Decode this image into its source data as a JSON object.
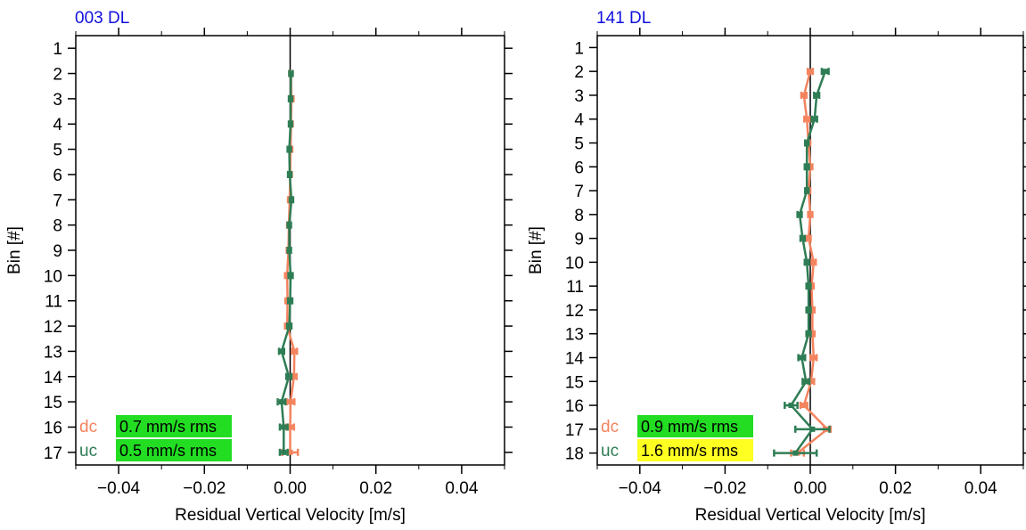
{
  "chart_data": [
    {
      "type": "line",
      "title": "003 DL",
      "xlabel": "Residual Vertical Velocity [m/s]",
      "ylabel": "Bin [#]",
      "xlim": [
        -0.05,
        0.05
      ],
      "ylim": [
        0.5,
        17.5
      ],
      "y_inverted": true,
      "xticks": [
        "−0.04",
        "−0.02",
        "0.00",
        "0.02",
        "0.04"
      ],
      "xtick_values": [
        -0.04,
        -0.02,
        0.0,
        0.02,
        0.04
      ],
      "yticks": [
        "1",
        "2",
        "3",
        "4",
        "5",
        "6",
        "7",
        "8",
        "9",
        "10",
        "11",
        "12",
        "13",
        "14",
        "15",
        "16",
        "17"
      ],
      "grid": false,
      "legend_location": "bottom-left",
      "series": [
        {
          "name": "dc",
          "color": "#f4845f",
          "rms_label": "0.7 mm/s rms",
          "rms_badge_color": "#22dd22",
          "points": [
            {
              "bin": 2,
              "x": 0.0002,
              "err": 0.0004
            },
            {
              "bin": 3,
              "x": 0.0003,
              "err": 0.0005
            },
            {
              "bin": 4,
              "x": 0.0002,
              "err": 0.0004
            },
            {
              "bin": 5,
              "x": 0.0001,
              "err": 0.0004
            },
            {
              "bin": 6,
              "x": 0.0,
              "err": 0.0004
            },
            {
              "bin": 7,
              "x": -0.0001,
              "err": 0.0004
            },
            {
              "bin": 8,
              "x": -0.0003,
              "err": 0.0004
            },
            {
              "bin": 9,
              "x": -0.0004,
              "err": 0.0004
            },
            {
              "bin": 10,
              "x": -0.0007,
              "err": 0.0005
            },
            {
              "bin": 11,
              "x": -0.0006,
              "err": 0.0005
            },
            {
              "bin": 12,
              "x": -0.0007,
              "err": 0.0005
            },
            {
              "bin": 13,
              "x": 0.001,
              "err": 0.0006
            },
            {
              "bin": 14,
              "x": 0.0009,
              "err": 0.0006
            },
            {
              "bin": 15,
              "x": 0.0001,
              "err": 0.0009
            },
            {
              "bin": 16,
              "x": 0.0,
              "err": 0.0009
            },
            {
              "bin": 17,
              "x": 0.0,
              "err": 0.0018
            }
          ]
        },
        {
          "name": "uc",
          "color": "#2e7d55",
          "rms_label": "0.5 mm/s rms",
          "rms_badge_color": "#22dd22",
          "points": [
            {
              "bin": 2,
              "x": 0.0002,
              "err": 0.0004
            },
            {
              "bin": 3,
              "x": 0.0001,
              "err": 0.0004
            },
            {
              "bin": 4,
              "x": 0.0001,
              "err": 0.0004
            },
            {
              "bin": 5,
              "x": -0.0002,
              "err": 0.0004
            },
            {
              "bin": 6,
              "x": -0.0001,
              "err": 0.0004
            },
            {
              "bin": 7,
              "x": 0.0003,
              "err": 0.0004
            },
            {
              "bin": 8,
              "x": -0.0002,
              "err": 0.0004
            },
            {
              "bin": 9,
              "x": -0.0002,
              "err": 0.0004
            },
            {
              "bin": 10,
              "x": 0.0001,
              "err": 0.0005
            },
            {
              "bin": 11,
              "x": 0.0,
              "err": 0.0005
            },
            {
              "bin": 12,
              "x": -0.0002,
              "err": 0.0005
            },
            {
              "bin": 13,
              "x": -0.002,
              "err": 0.0006
            },
            {
              "bin": 14,
              "x": -0.0003,
              "err": 0.0006
            },
            {
              "bin": 15,
              "x": -0.002,
              "err": 0.0009
            },
            {
              "bin": 16,
              "x": -0.0015,
              "err": 0.0009
            },
            {
              "bin": 17,
              "x": -0.0015,
              "err": 0.0009
            }
          ]
        }
      ]
    },
    {
      "type": "line",
      "title": "141 DL",
      "xlabel": "Residual Vertical Velocity [m/s]",
      "ylabel": "Bin [#]",
      "xlim": [
        -0.05,
        0.05
      ],
      "ylim": [
        0.5,
        18.5
      ],
      "y_inverted": true,
      "xticks": [
        "−0.04",
        "−0.02",
        "0.00",
        "0.02",
        "0.04"
      ],
      "xtick_values": [
        -0.04,
        -0.02,
        0.0,
        0.02,
        0.04
      ],
      "yticks": [
        "1",
        "2",
        "3",
        "4",
        "5",
        "6",
        "7",
        "8",
        "9",
        "10",
        "11",
        "12",
        "13",
        "14",
        "15",
        "16",
        "17",
        "18"
      ],
      "grid": false,
      "legend_location": "bottom-left",
      "series": [
        {
          "name": "dc",
          "color": "#f4845f",
          "rms_label": "0.9 mm/s rms",
          "rms_badge_color": "#22dd22",
          "points": [
            {
              "bin": 2,
              "x": 0.0,
              "err": 0.0006
            },
            {
              "bin": 3,
              "x": -0.0015,
              "err": 0.0006
            },
            {
              "bin": 4,
              "x": -0.0008,
              "err": 0.0006
            },
            {
              "bin": 5,
              "x": -0.0004,
              "err": 0.0004
            },
            {
              "bin": 6,
              "x": 0.0,
              "err": 0.0005
            },
            {
              "bin": 7,
              "x": -0.0004,
              "err": 0.0004
            },
            {
              "bin": 8,
              "x": 0.0,
              "err": 0.0005
            },
            {
              "bin": 9,
              "x": -0.0004,
              "err": 0.0005
            },
            {
              "bin": 10,
              "x": 0.0008,
              "err": 0.0005
            },
            {
              "bin": 11,
              "x": 0.0003,
              "err": 0.0005
            },
            {
              "bin": 12,
              "x": 0.0005,
              "err": 0.0005
            },
            {
              "bin": 13,
              "x": 0.0005,
              "err": 0.0005
            },
            {
              "bin": 14,
              "x": 0.0008,
              "err": 0.0007
            },
            {
              "bin": 15,
              "x": 0.0002,
              "err": 0.0007
            },
            {
              "bin": 16,
              "x": -0.0015,
              "err": 0.0008
            },
            {
              "bin": 17,
              "x": 0.004,
              "err": 0.0008
            },
            {
              "bin": 18,
              "x": -0.003,
              "err": 0.0015
            }
          ]
        },
        {
          "name": "uc",
          "color": "#2e7d55",
          "rms_label": "1.6 mm/s rms",
          "rms_badge_color": "#ffff22",
          "points": [
            {
              "bin": 2,
              "x": 0.0035,
              "err": 0.0008
            },
            {
              "bin": 3,
              "x": 0.0015,
              "err": 0.0006
            },
            {
              "bin": 4,
              "x": 0.001,
              "err": 0.0006
            },
            {
              "bin": 5,
              "x": -0.0008,
              "err": 0.0004
            },
            {
              "bin": 6,
              "x": -0.0008,
              "err": 0.0005
            },
            {
              "bin": 7,
              "x": -0.0008,
              "err": 0.0004
            },
            {
              "bin": 8,
              "x": -0.0025,
              "err": 0.0005
            },
            {
              "bin": 9,
              "x": -0.0018,
              "err": 0.0005
            },
            {
              "bin": 10,
              "x": -0.0008,
              "err": 0.0005
            },
            {
              "bin": 11,
              "x": -0.0004,
              "err": 0.0005
            },
            {
              "bin": 12,
              "x": -0.0004,
              "err": 0.0005
            },
            {
              "bin": 13,
              "x": -0.0004,
              "err": 0.0005
            },
            {
              "bin": 14,
              "x": -0.002,
              "err": 0.0008
            },
            {
              "bin": 15,
              "x": -0.001,
              "err": 0.0008
            },
            {
              "bin": 16,
              "x": -0.0045,
              "err": 0.0015
            },
            {
              "bin": 17,
              "x": 0.0005,
              "err": 0.004
            },
            {
              "bin": 18,
              "x": -0.0035,
              "err": 0.005
            }
          ]
        }
      ]
    }
  ]
}
